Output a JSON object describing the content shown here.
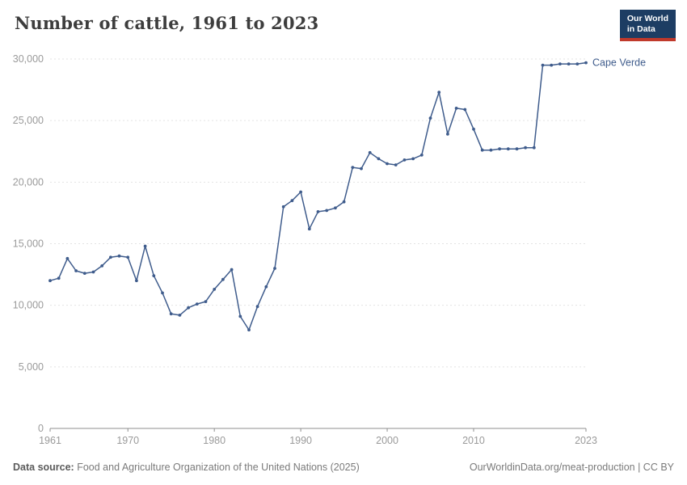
{
  "header": {
    "title": "Number of cattle, 1961 to 2023",
    "logo_line1": "Our World",
    "logo_line2": "in Data",
    "logo_bg_color": "#1d3d63",
    "logo_accent_color": "#c0392b"
  },
  "chart_data": {
    "type": "line",
    "title": "Number of cattle, 1961 to 2023",
    "xlabel": "",
    "ylabel": "",
    "xlim": [
      1961,
      2023
    ],
    "ylim": [
      0,
      30000
    ],
    "x_ticks": [
      1961,
      1970,
      1980,
      1990,
      2000,
      2010,
      2023
    ],
    "y_ticks": [
      0,
      5000,
      10000,
      15000,
      20000,
      25000,
      30000
    ],
    "grid": "dashed-horizontal",
    "legend": "end-of-line-label",
    "start_year": 1961,
    "series": [
      {
        "name": "Cape Verde",
        "color": "#3f5c8c",
        "values": [
          12000,
          12200,
          13800,
          12800,
          12600,
          12700,
          13200,
          13900,
          14000,
          13900,
          12000,
          14800,
          12400,
          11000,
          9300,
          9200,
          9800,
          10100,
          10300,
          11300,
          12100,
          12900,
          9100,
          8000,
          9900,
          11500,
          13000,
          18000,
          18500,
          19200,
          16200,
          17600,
          17700,
          17900,
          18400,
          21200,
          21100,
          22400,
          21900,
          21500,
          21400,
          21800,
          21900,
          22200,
          25200,
          27300,
          23900,
          26000,
          25900,
          24300,
          22600,
          22600,
          22700,
          22700,
          22700,
          22800,
          22800,
          29500,
          29500,
          29600,
          29600,
          29600,
          29700
        ]
      }
    ]
  },
  "footer": {
    "source_label": "Data source:",
    "source_text": "Food and Agriculture Organization of the United Nations (2025)",
    "credit": "OurWorldinData.org/meat-production | CC BY"
  }
}
